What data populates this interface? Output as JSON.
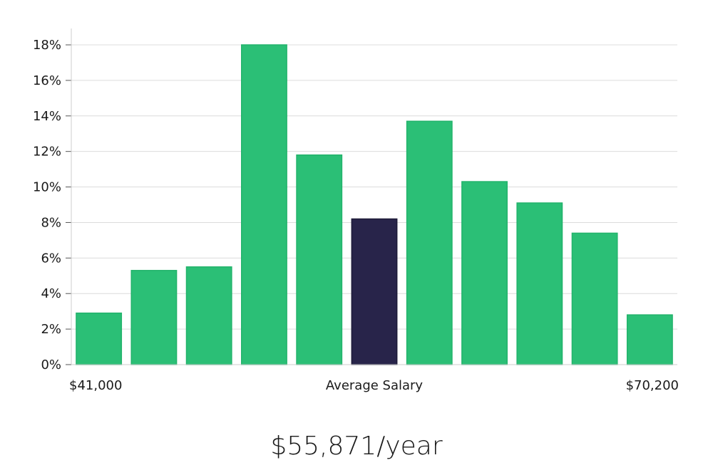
{
  "chart_data": {
    "type": "bar",
    "title": "",
    "xlabel": "",
    "ylabel": "",
    "ylim": [
      0,
      18
    ],
    "yticks": [
      0,
      2,
      4,
      6,
      8,
      10,
      12,
      14,
      16,
      18
    ],
    "ytick_suffix": "%",
    "x_labels": {
      "min": "$41,000",
      "center": "Average Salary",
      "max": "$70,200"
    },
    "values": [
      2.9,
      5.3,
      5.5,
      18.0,
      11.8,
      8.2,
      13.7,
      10.3,
      9.1,
      7.4,
      2.8
    ],
    "highlight_index": 5,
    "grid": true
  },
  "colors": {
    "bar": "#2bbf76",
    "bar_stroke": "#22b36b",
    "highlight": "#28244a",
    "grid": "#dcdcdc",
    "axis": "#cccccc"
  },
  "summary": {
    "salary": "$55,871/year"
  }
}
